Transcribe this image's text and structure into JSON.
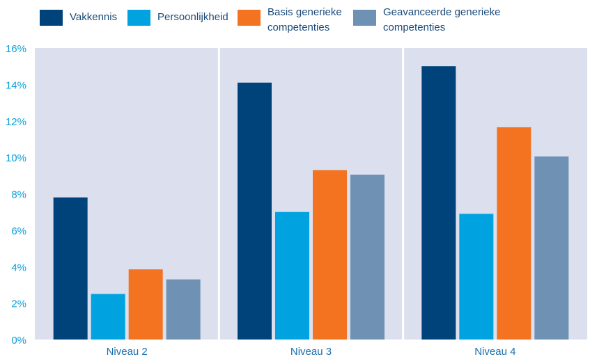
{
  "chart_data": {
    "type": "bar",
    "title": "",
    "xlabel": "",
    "ylabel": "",
    "categories": [
      "Niveau 2",
      "Niveau 3",
      "Niveau 4"
    ],
    "series": [
      {
        "name": "Vakkennis",
        "color": "#00437a",
        "values": [
          7.8,
          14.1,
          15.0
        ]
      },
      {
        "name": "Persoonlijkheid",
        "color": "#00a3e0",
        "values": [
          2.5,
          7.0,
          6.9
        ]
      },
      {
        "name": "Basis generieke competenties",
        "color": "#f37321",
        "values": [
          3.85,
          9.3,
          11.65
        ]
      },
      {
        "name": "Geavanceerde generieke competenties",
        "color": "#6e91b4",
        "values": [
          3.3,
          9.05,
          10.05
        ]
      }
    ],
    "legend_lines": [
      [
        "Vakkennis"
      ],
      [
        "Persoonlijkheid"
      ],
      [
        "Basis generieke",
        "competenties"
      ],
      [
        "Geavanceerde generieke",
        "competenties"
      ]
    ],
    "ylim": [
      0,
      16
    ],
    "yticks": [
      "0%",
      "2%",
      "4%",
      "6%",
      "8%",
      "10%",
      "12%",
      "14%",
      "16%"
    ],
    "legend_position": "top",
    "plot_background": "#dce0ee",
    "grid": false
  }
}
